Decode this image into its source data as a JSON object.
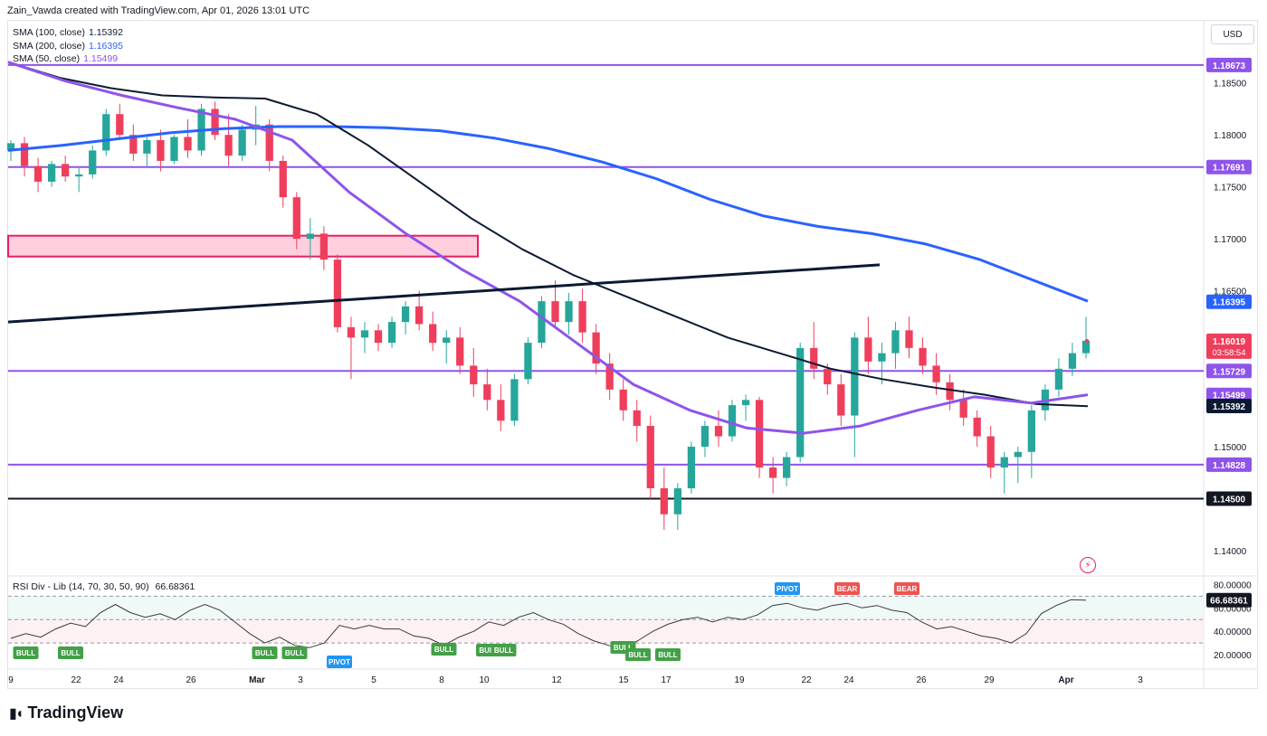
{
  "header": {
    "attribution": "Zain_Vawda created with TradingView.com, Apr 01, 2026 13:01 UTC"
  },
  "legend": [
    {
      "label": "SMA (100, close)",
      "value": "1.15392",
      "color": "#0b1a33"
    },
    {
      "label": "SMA (200, close)",
      "value": "1.16395",
      "color": "#2962ff"
    },
    {
      "label": "SMA (50, close)",
      "value": "1.15499",
      "color": "#8e54e9"
    }
  ],
  "currency": "USD",
  "rsi_legend": "RSI Div - Lib (14, 70, 30, 50, 90)",
  "rsi_value": "66.68361",
  "logo_text": "TradingView",
  "colors": {
    "up": "#26a69a",
    "down": "#ef3e5c",
    "sma50": "#8e54e9",
    "sma100": "#0b1a33",
    "sma200": "#2962ff",
    "level": "#8e54e9",
    "support": "#131722",
    "zone_fill": "#ffcfdd",
    "zone_stroke": "#e91e63"
  },
  "chart_data": {
    "type": "candlestick",
    "y_range": [
      1.138,
      1.1895
    ],
    "price_ticks": [
      "1.18500",
      "1.18000",
      "1.17500",
      "1.17000",
      "1.16500",
      "1.15000",
      "1.14000"
    ],
    "x_tick_labels": [
      "9",
      "22",
      "24",
      "26",
      "Mar",
      "3",
      "5",
      "8",
      "10",
      "12",
      "15",
      "17",
      "19",
      "22",
      "24",
      "26",
      "29",
      "Apr",
      "3"
    ],
    "horizontal_levels": [
      {
        "price": 1.18673,
        "label": "1.18673",
        "type": "level"
      },
      {
        "price": 1.17691,
        "label": "1.17691",
        "type": "level"
      },
      {
        "price": 1.15729,
        "label": "1.15729",
        "type": "level"
      },
      {
        "price": 1.14828,
        "label": "1.14828",
        "type": "level"
      },
      {
        "price": 1.145,
        "label": "1.14500",
        "type": "support"
      }
    ],
    "axis_badges": [
      {
        "price": 1.16395,
        "label": "1.16395",
        "bg": "#2962ff"
      },
      {
        "price": 1.16019,
        "label": "1.16019",
        "sub": "03:58:54",
        "bg": "#ef3e5c"
      },
      {
        "price": 1.15499,
        "label": "1.15499",
        "bg": "#8e54e9"
      },
      {
        "price": 1.15392,
        "label": "1.15392",
        "bg": "#0b1a33"
      }
    ],
    "zone": {
      "top": 1.1703,
      "bottom": 1.1683
    },
    "trendline": {
      "start": 1.162,
      "end": 1.1675
    },
    "sma200": [
      1.1785,
      1.179,
      1.1796,
      1.1802,
      1.1806,
      1.1808,
      1.1808,
      1.1807,
      1.1804,
      1.1797,
      1.1787,
      1.1774,
      1.1758,
      1.1738,
      1.1722,
      1.1712,
      1.1705,
      1.1695,
      1.168,
      1.166,
      1.164
    ],
    "sma100": [
      1.187,
      1.1855,
      1.1845,
      1.1838,
      1.1836,
      1.1835,
      1.182,
      1.179,
      1.1755,
      1.172,
      1.169,
      1.1665,
      1.1645,
      1.1625,
      1.1605,
      1.159,
      1.1575,
      1.1565,
      1.1557,
      1.155,
      1.1541,
      1.1539
    ],
    "sma50": [
      1.187,
      1.1852,
      1.1838,
      1.1826,
      1.1815,
      1.1795,
      1.1745,
      1.1705,
      1.167,
      1.164,
      1.16,
      1.156,
      1.1535,
      1.1518,
      1.1513,
      1.152,
      1.1535,
      1.1548,
      1.1542,
      1.155
    ],
    "rsi": {
      "y_ticks": [
        "80.00000",
        "60.00000",
        "40.00000",
        "20.00000"
      ],
      "overbought": 70,
      "oversold": 30,
      "mid": 50,
      "current": 66.68361,
      "values": [
        34,
        38,
        35,
        42,
        47,
        44,
        56,
        63,
        56,
        52,
        55,
        50,
        58,
        63,
        58,
        48,
        38,
        30,
        35,
        28,
        26,
        30,
        45,
        42,
        45,
        42,
        42,
        36,
        34,
        28,
        35,
        40,
        48,
        45,
        52,
        56,
        50,
        46,
        38,
        32,
        28,
        25,
        32,
        40,
        46,
        50,
        52,
        48,
        52,
        50,
        54,
        62,
        64,
        60,
        58,
        62,
        64,
        60,
        62,
        58,
        56,
        48,
        42,
        44,
        40,
        36,
        34,
        30,
        38,
        55,
        62,
        67,
        66.7
      ],
      "markers": [
        {
          "label": "BULL",
          "idx": 1,
          "kind": "bull",
          "pos": "low"
        },
        {
          "label": "BULL",
          "idx": 4,
          "kind": "bull",
          "pos": "low"
        },
        {
          "label": "BULL",
          "idx": 17,
          "kind": "bull",
          "pos": "low"
        },
        {
          "label": "BULL",
          "idx": 19,
          "kind": "bull",
          "pos": "low"
        },
        {
          "label": "PIVOT",
          "idx": 22,
          "kind": "pivot",
          "pos": "low"
        },
        {
          "label": "BULL",
          "idx": 29,
          "kind": "bull",
          "pos": "low"
        },
        {
          "label": "BULL",
          "idx": 32,
          "kind": "bull",
          "pos": "low"
        },
        {
          "label": "BULL",
          "idx": 33,
          "kind": "bull",
          "pos": "low"
        },
        {
          "label": "BULL",
          "idx": 41,
          "kind": "bull",
          "pos": "low"
        },
        {
          "label": "BULL",
          "idx": 42,
          "kind": "bull",
          "pos": "lower"
        },
        {
          "label": "BULL",
          "idx": 44,
          "kind": "bull",
          "pos": "lower"
        },
        {
          "label": "PIVOT",
          "idx": 52,
          "kind": "pivot",
          "pos": "high"
        },
        {
          "label": "BEAR",
          "idx": 56,
          "kind": "bear",
          "pos": "high"
        },
        {
          "label": "BEAR",
          "idx": 60,
          "kind": "bear",
          "pos": "high"
        }
      ]
    },
    "candles": [
      [
        1.1785,
        1.1795,
        1.1775,
        1.1792
      ],
      [
        1.1792,
        1.1798,
        1.176,
        1.177
      ],
      [
        1.177,
        1.1778,
        1.1745,
        1.1755
      ],
      [
        1.1755,
        1.1775,
        1.175,
        1.1772
      ],
      [
        1.1772,
        1.178,
        1.1755,
        1.176
      ],
      [
        1.176,
        1.1768,
        1.1745,
        1.1762
      ],
      [
        1.1762,
        1.179,
        1.1758,
        1.1785
      ],
      [
        1.1785,
        1.1825,
        1.178,
        1.182
      ],
      [
        1.182,
        1.183,
        1.1795,
        1.18
      ],
      [
        1.18,
        1.181,
        1.1775,
        1.1782
      ],
      [
        1.1782,
        1.18,
        1.177,
        1.1795
      ],
      [
        1.1795,
        1.1805,
        1.1765,
        1.1775
      ],
      [
        1.1775,
        1.18,
        1.1772,
        1.1798
      ],
      [
        1.1798,
        1.1815,
        1.1778,
        1.1785
      ],
      [
        1.1785,
        1.183,
        1.178,
        1.1825
      ],
      [
        1.1825,
        1.1832,
        1.1795,
        1.18
      ],
      [
        1.18,
        1.182,
        1.177,
        1.178
      ],
      [
        1.178,
        1.181,
        1.1775,
        1.1805
      ],
      [
        1.1805,
        1.1828,
        1.179,
        1.181
      ],
      [
        1.181,
        1.1815,
        1.1765,
        1.1775
      ],
      [
        1.1775,
        1.178,
        1.173,
        1.174
      ],
      [
        1.174,
        1.1745,
        1.169,
        1.17
      ],
      [
        1.17,
        1.172,
        1.168,
        1.1705
      ],
      [
        1.1705,
        1.1712,
        1.167,
        1.168
      ],
      [
        1.168,
        1.1685,
        1.161,
        1.1615
      ],
      [
        1.1615,
        1.1625,
        1.1565,
        1.1605
      ],
      [
        1.1605,
        1.162,
        1.159,
        1.1612
      ],
      [
        1.1612,
        1.1618,
        1.1592,
        1.16
      ],
      [
        1.16,
        1.1625,
        1.1595,
        1.162
      ],
      [
        1.162,
        1.164,
        1.1608,
        1.1635
      ],
      [
        1.1635,
        1.165,
        1.1612,
        1.1618
      ],
      [
        1.1618,
        1.163,
        1.1592,
        1.16
      ],
      [
        1.16,
        1.1612,
        1.158,
        1.1605
      ],
      [
        1.1605,
        1.1615,
        1.157,
        1.1578
      ],
      [
        1.1578,
        1.1595,
        1.1548,
        1.156
      ],
      [
        1.156,
        1.1575,
        1.1535,
        1.1545
      ],
      [
        1.1545,
        1.156,
        1.1515,
        1.1525
      ],
      [
        1.1525,
        1.157,
        1.152,
        1.1565
      ],
      [
        1.1565,
        1.1605,
        1.156,
        1.16
      ],
      [
        1.16,
        1.1645,
        1.1595,
        1.164
      ],
      [
        1.164,
        1.166,
        1.1615,
        1.162
      ],
      [
        1.162,
        1.1648,
        1.1608,
        1.164
      ],
      [
        1.164,
        1.1652,
        1.16,
        1.161
      ],
      [
        1.161,
        1.1618,
        1.157,
        1.158
      ],
      [
        1.158,
        1.159,
        1.1545,
        1.1555
      ],
      [
        1.1555,
        1.1565,
        1.1525,
        1.1535
      ],
      [
        1.1535,
        1.1545,
        1.1505,
        1.152
      ],
      [
        1.152,
        1.153,
        1.145,
        1.146
      ],
      [
        1.146,
        1.148,
        1.142,
        1.1435
      ],
      [
        1.1435,
        1.1465,
        1.142,
        1.146
      ],
      [
        1.146,
        1.1505,
        1.1455,
        1.15
      ],
      [
        1.15,
        1.1525,
        1.149,
        1.152
      ],
      [
        1.152,
        1.1535,
        1.15,
        1.151
      ],
      [
        1.151,
        1.1545,
        1.1505,
        1.154
      ],
      [
        1.154,
        1.155,
        1.1525,
        1.1545
      ],
      [
        1.1545,
        1.1548,
        1.147,
        1.148
      ],
      [
        1.148,
        1.149,
        1.1455,
        1.147
      ],
      [
        1.147,
        1.1495,
        1.1462,
        1.149
      ],
      [
        1.149,
        1.16,
        1.1485,
        1.1595
      ],
      [
        1.1595,
        1.162,
        1.1565,
        1.1575
      ],
      [
        1.1575,
        1.158,
        1.155,
        1.156
      ],
      [
        1.156,
        1.157,
        1.152,
        1.153
      ],
      [
        1.153,
        1.161,
        1.149,
        1.1605
      ],
      [
        1.1605,
        1.1625,
        1.157,
        1.1582
      ],
      [
        1.1582,
        1.16,
        1.156,
        1.159
      ],
      [
        1.159,
        1.162,
        1.1575,
        1.1612
      ],
      [
        1.1612,
        1.1625,
        1.1585,
        1.1595
      ],
      [
        1.1595,
        1.1605,
        1.157,
        1.1578
      ],
      [
        1.1578,
        1.159,
        1.155,
        1.1562
      ],
      [
        1.1562,
        1.157,
        1.1535,
        1.1545
      ],
      [
        1.1545,
        1.1555,
        1.152,
        1.1528
      ],
      [
        1.1528,
        1.1535,
        1.15,
        1.151
      ],
      [
        1.151,
        1.152,
        1.147,
        1.148
      ],
      [
        1.148,
        1.1495,
        1.1455,
        1.149
      ],
      [
        1.149,
        1.15,
        1.1465,
        1.1495
      ],
      [
        1.1495,
        1.154,
        1.147,
        1.1535
      ],
      [
        1.1535,
        1.156,
        1.1525,
        1.1555
      ],
      [
        1.1555,
        1.1585,
        1.1548,
        1.1575
      ],
      [
        1.1575,
        1.16,
        1.1568,
        1.159
      ],
      [
        1.159,
        1.1625,
        1.1585,
        1.1602
      ]
    ]
  }
}
